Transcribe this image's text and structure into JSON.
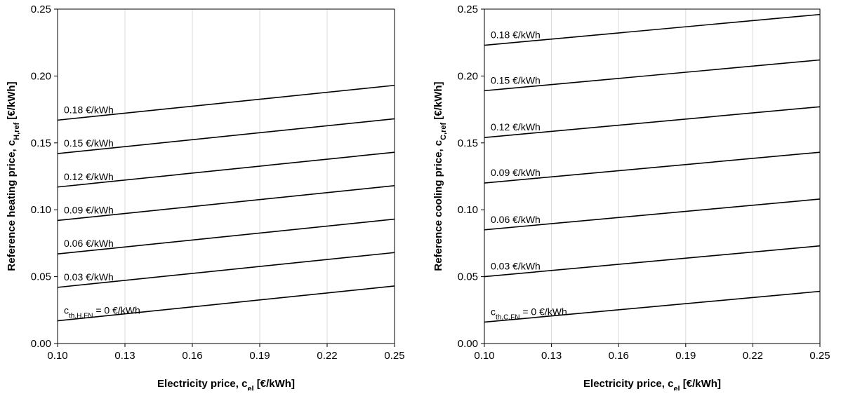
{
  "chart_data": [
    {
      "type": "line",
      "title": "",
      "xlabel": {
        "main": "Electricity price, c",
        "sub": "el",
        "unit": " [€/kWh]"
      },
      "ylabel": {
        "main": "Reference heating price, c",
        "sub": "H,ref",
        "unit": " [€/kWh]"
      },
      "xlim": [
        0.1,
        0.25
      ],
      "ylim": [
        0.0,
        0.25
      ],
      "xticks": [
        "0.10",
        "0.13",
        "0.16",
        "0.19",
        "0.22",
        "0.25"
      ],
      "yticks": [
        "0.00",
        "0.05",
        "0.10",
        "0.15",
        "0.20",
        "0.25"
      ],
      "grid": "vertical",
      "series": [
        {
          "label": {
            "pre": "c",
            "sub": "th,H,FN",
            "post": " = 0 €/kWh"
          },
          "x": [
            0.1,
            0.25
          ],
          "y": [
            0.017,
            0.043
          ]
        },
        {
          "label": {
            "pre": "0.03 €/kWh",
            "sub": "",
            "post": ""
          },
          "x": [
            0.1,
            0.25
          ],
          "y": [
            0.042,
            0.068
          ]
        },
        {
          "label": {
            "pre": "0.06 €/kWh",
            "sub": "",
            "post": ""
          },
          "x": [
            0.1,
            0.25
          ],
          "y": [
            0.067,
            0.093
          ]
        },
        {
          "label": {
            "pre": "0.09 €/kWh",
            "sub": "",
            "post": ""
          },
          "x": [
            0.1,
            0.25
          ],
          "y": [
            0.092,
            0.118
          ]
        },
        {
          "label": {
            "pre": "0.12 €/kWh",
            "sub": "",
            "post": ""
          },
          "x": [
            0.1,
            0.25
          ],
          "y": [
            0.117,
            0.143
          ]
        },
        {
          "label": {
            "pre": "0.15 €/kWh",
            "sub": "",
            "post": ""
          },
          "x": [
            0.1,
            0.25
          ],
          "y": [
            0.142,
            0.168
          ]
        },
        {
          "label": {
            "pre": "0.18 €/kWh",
            "sub": "",
            "post": ""
          },
          "x": [
            0.1,
            0.25
          ],
          "y": [
            0.167,
            0.193
          ]
        }
      ]
    },
    {
      "type": "line",
      "title": "",
      "xlabel": {
        "main": "Electricity price, c",
        "sub": "el",
        "unit": " [€/kWh]"
      },
      "ylabel": {
        "main": "Reference cooling price, c",
        "sub": "C,ref",
        "unit": " [€/kWh]"
      },
      "xlim": [
        0.1,
        0.25
      ],
      "ylim": [
        0.0,
        0.25
      ],
      "xticks": [
        "0.10",
        "0.13",
        "0.16",
        "0.19",
        "0.22",
        "0.25"
      ],
      "yticks": [
        "0.00",
        "0.05",
        "0.10",
        "0.15",
        "0.20",
        "0.25"
      ],
      "grid": "vertical",
      "series": [
        {
          "label": {
            "pre": "c",
            "sub": "th,C,FN",
            "post": " = 0 €/kWh"
          },
          "x": [
            0.1,
            0.25
          ],
          "y": [
            0.016,
            0.039
          ]
        },
        {
          "label": {
            "pre": "0.03 €/kWh",
            "sub": "",
            "post": ""
          },
          "x": [
            0.1,
            0.25
          ],
          "y": [
            0.05,
            0.073
          ]
        },
        {
          "label": {
            "pre": "0.06 €/kWh",
            "sub": "",
            "post": ""
          },
          "x": [
            0.1,
            0.25
          ],
          "y": [
            0.085,
            0.108
          ]
        },
        {
          "label": {
            "pre": "0.09 €/kWh",
            "sub": "",
            "post": ""
          },
          "x": [
            0.1,
            0.25
          ],
          "y": [
            0.12,
            0.143
          ]
        },
        {
          "label": {
            "pre": "0.12 €/kWh",
            "sub": "",
            "post": ""
          },
          "x": [
            0.1,
            0.25
          ],
          "y": [
            0.154,
            0.177
          ]
        },
        {
          "label": {
            "pre": "0.15 €/kWh",
            "sub": "",
            "post": ""
          },
          "x": [
            0.1,
            0.25
          ],
          "y": [
            0.189,
            0.212
          ]
        },
        {
          "label": {
            "pre": "0.18 €/kWh",
            "sub": "",
            "post": ""
          },
          "x": [
            0.1,
            0.25
          ],
          "y": [
            0.223,
            0.246
          ]
        }
      ]
    }
  ]
}
